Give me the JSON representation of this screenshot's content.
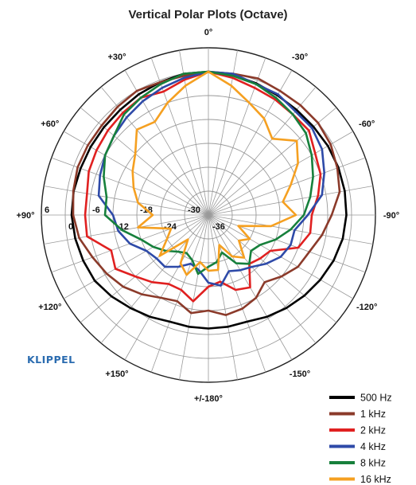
{
  "chart_data": {
    "type": "polar",
    "title": "Vertical Polar Plots (Octave)",
    "brand": "KLIPPEL",
    "radial_axis": {
      "min": -36,
      "max": 6,
      "ticks": [
        6,
        0,
        -6,
        -12,
        -18,
        -24,
        -30,
        -36
      ],
      "tick_labels": [
        "6",
        "0",
        "-6",
        "-12",
        "-18",
        "-24",
        "-30",
        "-36"
      ]
    },
    "angle_labels": [
      {
        "angle": 0,
        "label": "0°"
      },
      {
        "angle": -30,
        "label": "-30°"
      },
      {
        "angle": -60,
        "label": "-60°"
      },
      {
        "angle": -90,
        "label": "-90°"
      },
      {
        "angle": -120,
        "label": "-120°"
      },
      {
        "angle": -150,
        "label": "-150°"
      },
      {
        "angle": 180,
        "label": "+/-180°"
      },
      {
        "angle": 150,
        "label": "+150°"
      },
      {
        "angle": 120,
        "label": "+120°"
      },
      {
        "angle": 90,
        "label": "+90°"
      },
      {
        "angle": 60,
        "label": "+60°"
      },
      {
        "angle": 30,
        "label": "+30°"
      }
    ],
    "grid": true,
    "legend_position": "bottom-right",
    "series": [
      {
        "name": "500 Hz",
        "color": "#000000",
        "angles": [
          0,
          10,
          20,
          30,
          40,
          50,
          60,
          70,
          80,
          90,
          100,
          110,
          120,
          130,
          140,
          150,
          160,
          170,
          180,
          190,
          200,
          210,
          220,
          230,
          240,
          250,
          260,
          270,
          280,
          290,
          300,
          310,
          320,
          330,
          340,
          350
        ],
        "values": [
          0,
          0,
          -0.5,
          -1,
          -1.5,
          -1.7,
          -1.8,
          -1.8,
          -1.6,
          -1.6,
          -2,
          -2.5,
          -3,
          -4.2,
          -5.5,
          -6.5,
          -7.5,
          -7.5,
          -7.5,
          -7.5,
          -7.5,
          -6.5,
          -5.5,
          -4.5,
          -3.5,
          -2.5,
          -1.7,
          -1.3,
          -1.2,
          -1.2,
          -1.3,
          -1.5,
          -1.5,
          -1.3,
          -0.8,
          -0.3
        ]
      },
      {
        "name": "1 kHz",
        "color": "#8b3a2a",
        "angles": [
          0,
          10,
          20,
          30,
          40,
          50,
          60,
          70,
          80,
          90,
          100,
          110,
          120,
          130,
          140,
          150,
          160,
          170,
          180,
          190,
          200,
          210,
          220,
          230,
          240,
          250,
          260,
          270,
          280,
          290,
          300,
          310,
          320,
          330,
          340,
          350
        ],
        "values": [
          0,
          -0.5,
          -0.5,
          0,
          -0.5,
          -1,
          -1,
          -1,
          -1.5,
          -2,
          -3,
          -5,
          -6.5,
          -8,
          -10,
          -12,
          -13,
          -11,
          -12,
          -10.5,
          -11,
          -12,
          -14,
          -12,
          -10,
          -9,
          -7,
          -5,
          -2.5,
          -1.5,
          -0.5,
          0,
          0,
          0,
          0.5,
          0
        ]
      },
      {
        "name": "2 kHz",
        "color": "#e02020",
        "angles": [
          0,
          10,
          20,
          30,
          40,
          50,
          60,
          70,
          80,
          90,
          100,
          110,
          120,
          130,
          140,
          150,
          160,
          170,
          180,
          190,
          200,
          210,
          220,
          230,
          240,
          250,
          260,
          270,
          280,
          290,
          300,
          310,
          320,
          330,
          340,
          350
        ],
        "values": [
          0,
          -1.5,
          -3,
          -2,
          -2.5,
          -3,
          -3.5,
          -4,
          -5,
          -5,
          -5,
          -10,
          -9,
          -12,
          -14,
          -16,
          -16,
          -14,
          -18,
          -19,
          -16,
          -15,
          -20,
          -19,
          -18,
          -12,
          -10,
          -10,
          -8,
          -6,
          -5,
          -3,
          -3,
          -2.5,
          -2,
          -1
        ]
      },
      {
        "name": "4 kHz",
        "color": "#2e4aa8",
        "angles": [
          0,
          10,
          20,
          30,
          40,
          50,
          60,
          70,
          80,
          90,
          100,
          110,
          120,
          130,
          140,
          150,
          160,
          170,
          180,
          190,
          200,
          210,
          220,
          230,
          240,
          250,
          260,
          270,
          280,
          290,
          300,
          310,
          320,
          330,
          340,
          350
        ],
        "values": [
          0,
          -1,
          -2,
          -3,
          -4,
          -5,
          -6,
          -7,
          -8,
          -12,
          -13,
          -15,
          -18,
          -19,
          -19,
          -21,
          -23,
          -22,
          -19,
          -18,
          -21,
          -20,
          -19,
          -17,
          -15,
          -14,
          -14,
          -11,
          -7,
          -5,
          -3,
          -2,
          -2,
          -1,
          -1,
          0
        ]
      },
      {
        "name": "8 kHz",
        "color": "#17803c",
        "angles": [
          0,
          10,
          20,
          30,
          40,
          50,
          60,
          70,
          80,
          90,
          100,
          110,
          120,
          130,
          140,
          150,
          160,
          170,
          180,
          190,
          200,
          210,
          220,
          230,
          240,
          250,
          260,
          270,
          280,
          290,
          300,
          310,
          320,
          330,
          340,
          350
        ],
        "values": [
          0,
          0,
          -1,
          -2,
          -3,
          -5,
          -6,
          -8,
          -10,
          -10,
          -14,
          -18,
          -20,
          -22,
          -24,
          -25,
          -24,
          -21,
          -23,
          -24,
          -26,
          -22,
          -20,
          -22,
          -21,
          -18,
          -15,
          -12,
          -10,
          -8,
          -6,
          -4,
          -3,
          -2,
          -1,
          -0.5
        ]
      },
      {
        "name": "16 kHz",
        "color": "#f5a021",
        "angles": [
          0,
          10,
          20,
          30,
          40,
          50,
          60,
          70,
          80,
          90,
          100,
          110,
          120,
          130,
          140,
          150,
          160,
          170,
          180,
          190,
          200,
          210,
          220,
          230,
          240,
          250,
          260,
          270,
          280,
          290,
          300,
          310,
          320,
          330,
          340,
          350
        ],
        "values": [
          0,
          -3,
          -6,
          -9,
          -8,
          -12,
          -14,
          -16,
          -18,
          -22,
          -18,
          -26,
          -24,
          -20,
          -28,
          -22,
          -20,
          -24,
          -22,
          -22,
          -28,
          -24,
          -22,
          -26,
          -24,
          -28,
          -20,
          -14,
          -17,
          -14,
          -10,
          -7,
          -11,
          -8,
          -6,
          -3
        ]
      }
    ]
  }
}
